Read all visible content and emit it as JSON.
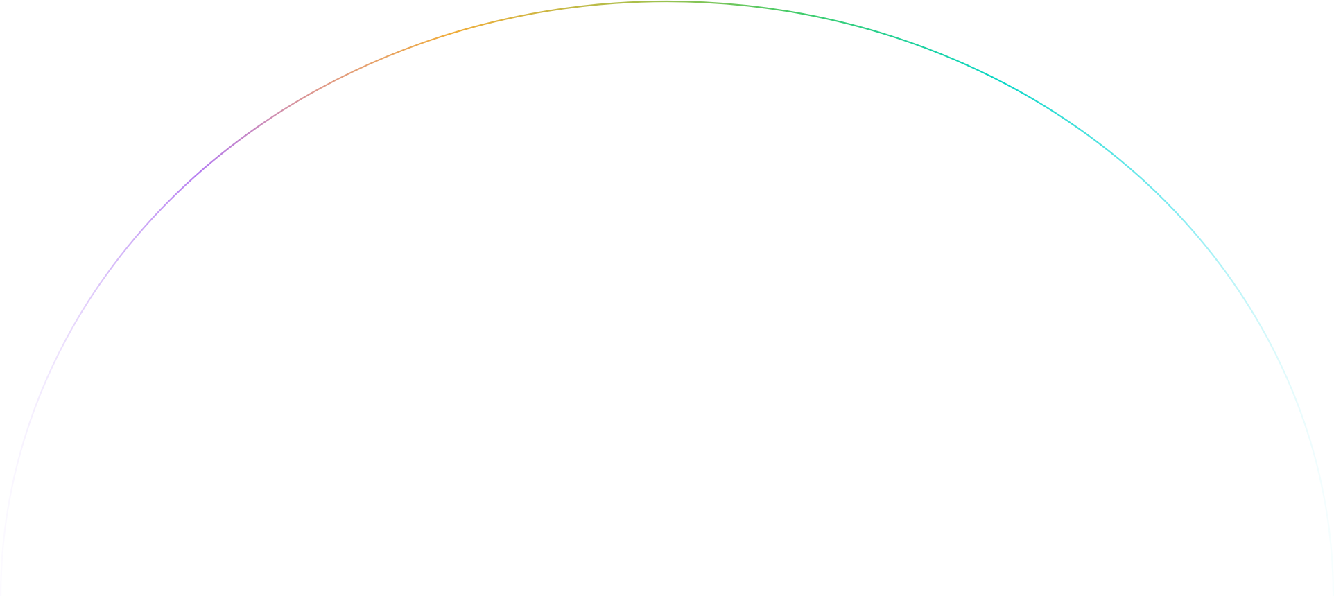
{
  "background": "#ffffff",
  "arc": {
    "gradient_stops": [
      {
        "offset": 0.0,
        "color": "#e9ddff",
        "opacity": 0.15
      },
      {
        "offset": 0.08,
        "color": "#c9a6f7",
        "opacity": 0.7
      },
      {
        "offset": 0.15,
        "color": "#b57cf0",
        "opacity": 1
      },
      {
        "offset": 0.24,
        "color": "#e09a8a",
        "opacity": 1
      },
      {
        "offset": 0.34,
        "color": "#f0ad3a",
        "opacity": 1
      },
      {
        "offset": 0.48,
        "color": "#a9bf4a",
        "opacity": 1
      },
      {
        "offset": 0.6,
        "color": "#3fcc6a",
        "opacity": 1
      },
      {
        "offset": 0.75,
        "color": "#08d6c6",
        "opacity": 1
      },
      {
        "offset": 0.88,
        "color": "#5ee6ee",
        "opacity": 0.8
      },
      {
        "offset": 1.0,
        "color": "#c9f6fa",
        "opacity": 0.15
      }
    ]
  }
}
